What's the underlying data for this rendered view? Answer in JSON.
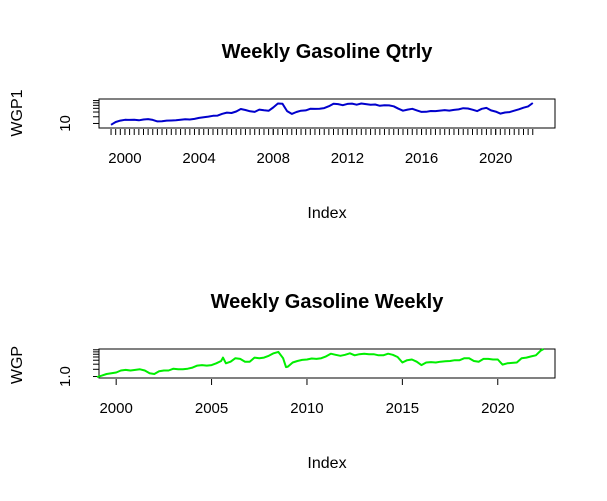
{
  "chart_data": [
    {
      "type": "line",
      "title": "Weekly Gasoline Qtrly",
      "xlabel": "Index",
      "ylabel": "WGP1",
      "scale_y": "log",
      "xlim": [
        1998.6,
        2023.2
      ],
      "ylim": [
        7.6,
        44
      ],
      "x_ticks": [
        2000,
        2004,
        2008,
        2012,
        2016,
        2020
      ],
      "x_tick_labels": [
        "2000",
        "2004",
        "2008",
        "2012",
        "2016",
        "2020"
      ],
      "minor_tick_step": 0.25,
      "y_tick_labels": [
        "10"
      ],
      "color": "#0000cc",
      "series": [
        {
          "x": [
            1999.25,
            1999.5,
            1999.75,
            2000,
            2000.25,
            2000.5,
            2000.75,
            2001,
            2001.25,
            2001.5,
            2001.75,
            2002,
            2002.25,
            2002.5,
            2002.75,
            2003,
            2003.25,
            2003.5,
            2003.75,
            2004,
            2004.25,
            2004.5,
            2004.75,
            2005,
            2005.25,
            2005.5,
            2005.75,
            2006,
            2006.25,
            2006.5,
            2006.75,
            2007,
            2007.25,
            2007.5,
            2007.75,
            2008,
            2008.25,
            2008.5,
            2008.75,
            2009,
            2009.25,
            2009.5,
            2009.75,
            2010,
            2010.25,
            2010.5,
            2010.75,
            2011,
            2011.25,
            2011.5,
            2011.75,
            2012,
            2012.25,
            2012.5,
            2012.75,
            2013,
            2013.25,
            2013.5,
            2013.75,
            2014,
            2014.25,
            2014.5,
            2014.75,
            2015,
            2015.25,
            2015.5,
            2015.75,
            2016,
            2016.25,
            2016.5,
            2016.75,
            2017,
            2017.25,
            2017.5,
            2017.75,
            2018,
            2018.25,
            2018.5,
            2018.75,
            2019,
            2019.25,
            2019.5,
            2019.75,
            2020,
            2020.25,
            2020.5,
            2020.75,
            2021,
            2021.25,
            2021.5,
            2021.75,
            2022
          ],
          "y": [
            9.2,
            10.9,
            11.9,
            12.5,
            12.4,
            12.6,
            12.1,
            12.7,
            13.0,
            12.4,
            11.3,
            11.4,
            11.9,
            12.0,
            12.1,
            12.5,
            12.9,
            12.7,
            13.2,
            14.0,
            14.6,
            15.2,
            15.9,
            16.1,
            18.0,
            19.3,
            18.8,
            20.6,
            24.0,
            22.6,
            20.9,
            20.2,
            23.1,
            22.2,
            21.5,
            26.3,
            33.5,
            33.0,
            21.1,
            17.9,
            20.0,
            21.7,
            22.0,
            24.3,
            24.2,
            24.4,
            25.4,
            28.4,
            33.2,
            32.4,
            30.2,
            32.8,
            33.4,
            31.2,
            33.5,
            32.3,
            30.9,
            31.5,
            29.1,
            30.2,
            29.8,
            28.3,
            24.5,
            21.6,
            23.2,
            24.3,
            22.0,
            20.2,
            20.3,
            21.3,
            21.2,
            21.8,
            22.4,
            21.8,
            22.7,
            23.5,
            25.2,
            24.7,
            23.0,
            21.2,
            24.3,
            25.6,
            22.1,
            20.5,
            18.2,
            19.4,
            19.9,
            21.6,
            23.6,
            26.0,
            28.1,
            34.5
          ]
        }
      ]
    },
    {
      "type": "line",
      "title": "Weekly Gasoline Weekly",
      "xlabel": "Index",
      "ylabel": "WGP",
      "scale_y": "log",
      "xlim": [
        1999.1,
        2023.0
      ],
      "ylim": [
        0.92,
        4.7
      ],
      "x_ticks": [
        2000,
        2005,
        2010,
        2015,
        2020
      ],
      "x_tick_labels": [
        "2000",
        "2005",
        "2010",
        "2015",
        "2020"
      ],
      "y_tick_labels": [
        "1.0"
      ],
      "color": "#00ee00",
      "series": [
        {
          "x": [
            1999.0,
            1999.25,
            1999.5,
            1999.75,
            2000,
            2000.25,
            2000.5,
            2000.75,
            2001,
            2001.25,
            2001.5,
            2001.75,
            2002,
            2002.25,
            2002.5,
            2002.75,
            2003,
            2003.25,
            2003.5,
            2003.75,
            2004,
            2004.25,
            2004.5,
            2004.75,
            2005,
            2005.25,
            2005.5,
            2005.6,
            2005.75,
            2006,
            2006.25,
            2006.5,
            2006.75,
            2007,
            2007.25,
            2007.5,
            2007.75,
            2008,
            2008.25,
            2008.5,
            2008.75,
            2008.9,
            2009,
            2009.25,
            2009.5,
            2009.75,
            2010,
            2010.25,
            2010.5,
            2010.75,
            2011,
            2011.25,
            2011.5,
            2011.75,
            2012,
            2012.25,
            2012.5,
            2012.75,
            2013,
            2013.25,
            2013.5,
            2013.75,
            2014,
            2014.25,
            2014.5,
            2014.75,
            2015,
            2015.25,
            2015.5,
            2015.75,
            2016,
            2016.25,
            2016.5,
            2016.75,
            2017,
            2017.25,
            2017.5,
            2017.75,
            2018,
            2018.25,
            2018.5,
            2018.75,
            2019,
            2019.25,
            2019.5,
            2019.75,
            2020,
            2020.25,
            2020.5,
            2020.75,
            2021,
            2021.25,
            2021.5,
            2021.75,
            2022,
            2022.25,
            2022.4
          ],
          "y": [
            0.97,
            1.05,
            1.15,
            1.2,
            1.25,
            1.4,
            1.45,
            1.4,
            1.45,
            1.5,
            1.4,
            1.2,
            1.15,
            1.35,
            1.4,
            1.4,
            1.55,
            1.5,
            1.5,
            1.55,
            1.65,
            1.85,
            1.9,
            1.85,
            1.9,
            2.1,
            2.4,
            2.9,
            2.1,
            2.3,
            2.8,
            2.7,
            2.3,
            2.3,
            2.9,
            2.8,
            2.9,
            3.2,
            3.7,
            4.0,
            2.8,
            1.7,
            1.75,
            2.2,
            2.4,
            2.55,
            2.6,
            2.75,
            2.7,
            2.8,
            3.1,
            3.6,
            3.4,
            3.2,
            3.4,
            3.7,
            3.3,
            3.5,
            3.6,
            3.5,
            3.5,
            3.3,
            3.3,
            3.6,
            3.4,
            3.0,
            2.2,
            2.5,
            2.6,
            2.3,
            1.9,
            2.2,
            2.25,
            2.2,
            2.3,
            2.35,
            2.4,
            2.5,
            2.5,
            2.8,
            2.8,
            2.4,
            2.3,
            2.7,
            2.7,
            2.6,
            2.6,
            1.95,
            2.1,
            2.15,
            2.2,
            2.8,
            2.9,
            3.1,
            3.3,
            4.3,
            4.9
          ]
        }
      ]
    }
  ]
}
